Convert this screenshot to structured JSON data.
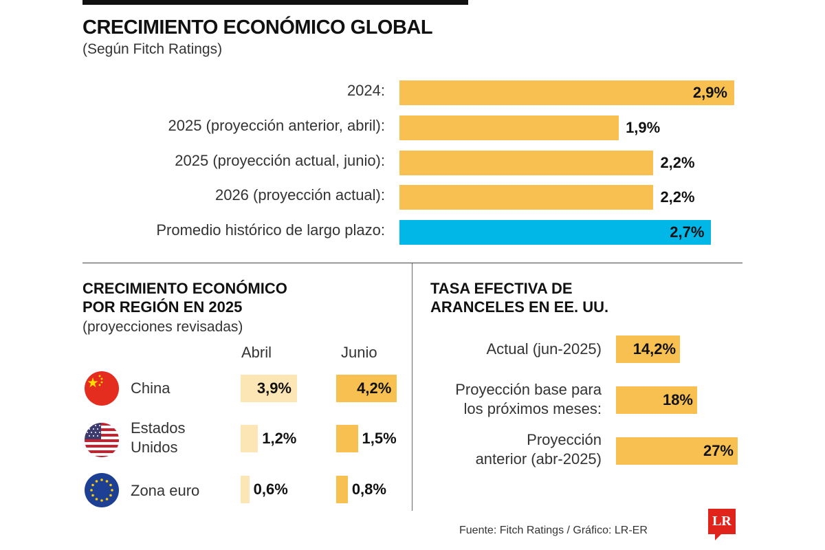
{
  "header": {
    "title": "CRECIMIENTO ECONÓMICO GLOBAL",
    "subtitle": "(Según Fitch Ratings)"
  },
  "colors": {
    "bar_primary": "#f7c050",
    "bar_light": "#fde6b6",
    "bar_highlight": "#00b7e8",
    "logo_red": "#e0241c"
  },
  "chart_data": [
    {
      "type": "bar",
      "orientation": "horizontal",
      "title": "CRECIMIENTO ECONÓMICO GLOBAL",
      "subtitle": "(Según Fitch Ratings)",
      "categories": [
        "2024:",
        "2025 (proyección anterior, abril):",
        "2025 (proyección actual, junio):",
        "2026 (proyección actual):",
        "Promedio histórico de largo plazo:"
      ],
      "values": [
        2.9,
        1.9,
        2.2,
        2.2,
        2.7
      ],
      "labels": [
        "2,9%",
        "1,9%",
        "2,2%",
        "2,2%",
        "2,7%"
      ],
      "highlight": [
        false,
        false,
        false,
        false,
        true
      ],
      "unit": "%"
    },
    {
      "type": "bar",
      "orientation": "horizontal",
      "title": "CRECIMIENTO ECONÓMICO POR REGIÓN EN 2025",
      "subtitle": "(proyecciones revisadas)",
      "categories": [
        "China",
        "Estados Unidos",
        "Zona euro"
      ],
      "series": [
        {
          "name": "Abril",
          "values": [
            3.9,
            1.2,
            0.6
          ],
          "labels": [
            "3,9%",
            "1,2%",
            "0,6%"
          ]
        },
        {
          "name": "Junio",
          "values": [
            4.2,
            1.5,
            0.8
          ],
          "labels": [
            "4,2%",
            "1,5%",
            "0,8%"
          ]
        }
      ],
      "unit": "%"
    },
    {
      "type": "bar",
      "orientation": "horizontal",
      "title": "TASA EFECTIVA DE ARANCELES EN EE. UU.",
      "categories": [
        "Actual (jun-2025)",
        "Proyección base para los próximos meses:",
        "Proyección anterior (abr-2025)"
      ],
      "values": [
        14.2,
        18,
        27
      ],
      "labels": [
        "14,2%",
        "18%",
        "27%"
      ],
      "unit": "%"
    }
  ],
  "global": {
    "rows": [
      {
        "label": "2024:",
        "value": 2.9,
        "display": "2,9%",
        "inside": true,
        "highlight": false
      },
      {
        "label": "2025 (proyección anterior, abril):",
        "value": 1.9,
        "display": "1,9%",
        "inside": false,
        "highlight": false
      },
      {
        "label": "2025 (proyección actual, junio):",
        "value": 2.2,
        "display": "2,2%",
        "inside": false,
        "highlight": false
      },
      {
        "label": "2026 (proyección actual):",
        "value": 2.2,
        "display": "2,2%",
        "inside": false,
        "highlight": false
      },
      {
        "label": "Promedio histórico de largo plazo:",
        "value": 2.7,
        "display": "2,7%",
        "inside": true,
        "highlight": true
      }
    ]
  },
  "region": {
    "title_line1": "CRECIMIENTO ECONÓMICO",
    "title_line2": "POR REGIÓN EN 2025",
    "subtitle": "(proyecciones revisadas)",
    "col_april": "Abril",
    "col_june": "Junio",
    "rows": [
      {
        "name_line1": "China",
        "name_line2": "",
        "flag": "china-flag-icon",
        "april": 3.9,
        "april_display": "3,9%",
        "june": 4.2,
        "june_display": "4,2%"
      },
      {
        "name_line1": "Estados",
        "name_line2": "Unidos",
        "flag": "usa-flag-icon",
        "april": 1.2,
        "april_display": "1,2%",
        "june": 1.5,
        "june_display": "1,5%"
      },
      {
        "name_line1": "Zona euro",
        "name_line2": "",
        "flag": "eu-flag-icon",
        "april": 0.6,
        "april_display": "0,6%",
        "june": 0.8,
        "june_display": "0,8%"
      }
    ]
  },
  "tariffs": {
    "title_line1": "TASA EFECTIVA DE",
    "title_line2": "ARANCELES EN EE. UU.",
    "rows": [
      {
        "label_line1": "Actual (jun-2025)",
        "label_line2": "",
        "value": 14.2,
        "display": "14,2%"
      },
      {
        "label_line1": "Proyección base para",
        "label_line2": "los próximos meses:",
        "value": 18,
        "display": "18%"
      },
      {
        "label_line1": "Proyección",
        "label_line2": "anterior (abr-2025)",
        "value": 27,
        "display": "27%"
      }
    ]
  },
  "footer": {
    "source": "Fuente: Fitch Ratings / Gráfico: LR-ER",
    "logo_text": "LR"
  }
}
